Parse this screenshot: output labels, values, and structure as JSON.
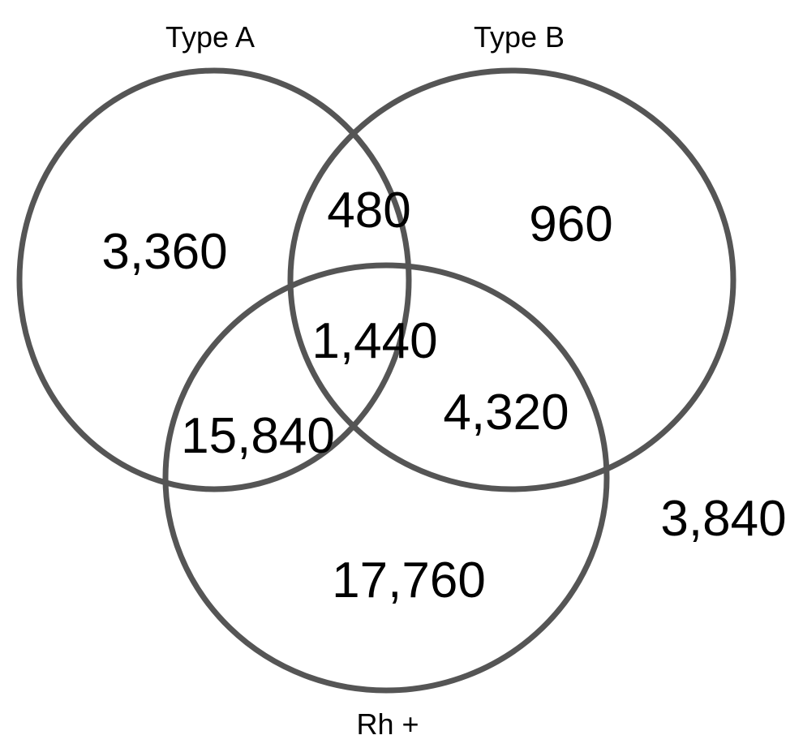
{
  "colors": {
    "outline": "#555555",
    "text": "#000000",
    "background": "#ffffff"
  },
  "sets": {
    "a": {
      "label": "Type A"
    },
    "b": {
      "label": "Type B"
    },
    "rh": {
      "label": "Rh +"
    }
  },
  "regions": {
    "a_only": "3,360",
    "b_only": "960",
    "a_and_b_only": "480",
    "a_b_rh": "1,440",
    "a_and_rh_only": "15,840",
    "b_and_rh_only": "4,320",
    "rh_only": "17,760",
    "outside": "3,840"
  }
}
